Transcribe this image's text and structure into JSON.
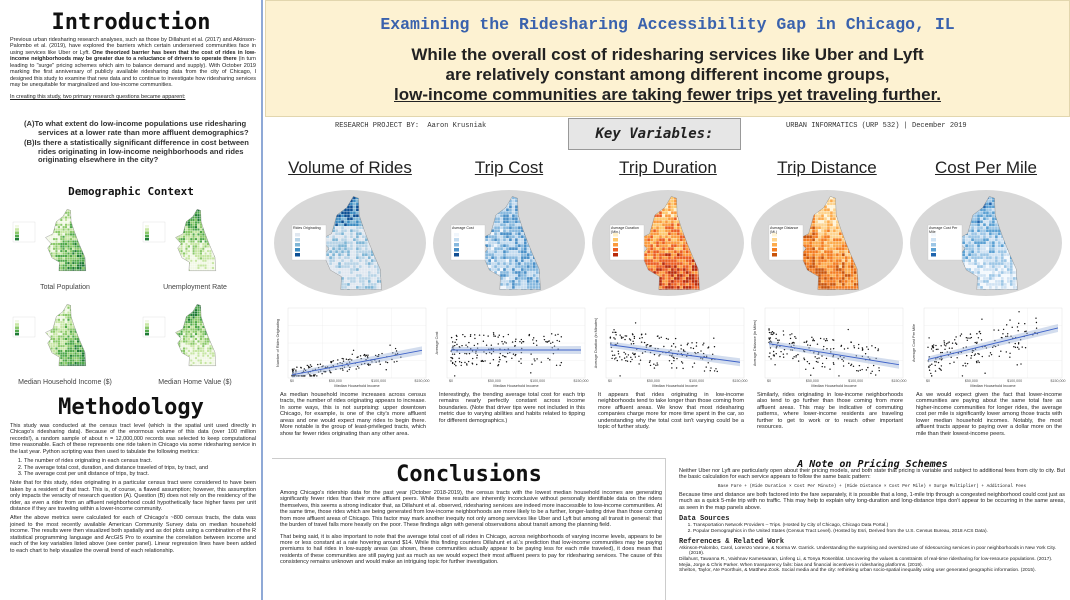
{
  "header": {
    "title": "Examining the Ridesharing Accessibility Gap in Chicago, IL",
    "subtitle": [
      "While the overall cost of ridesharing services like Uber and Lyft",
      "are relatively constant among different income groups,",
      "low-income communities are taking fewer trips yet traveling further."
    ],
    "author": "RESEARCH PROJECT BY:  Aaron Krusniak",
    "course": "URBAN INFORMATICS (URP 532) | December 2019"
  },
  "intro": {
    "title": "Introduction",
    "paragraph_1": [
      "Previous urban ridesharing research analyses, such as those by Dillahunt et al. (2017) and Atkinson-Palombo et al. (2019), have explored the barriers which certain underserved communities face in using services like Uber or Lyft. ",
      "One theorized barrier has been that the cost of rides in low-income neighborhoods may be greater due to a reluctance of drivers to operate there",
      " (in turn leading to \"surge\" pricing schemes which aim to balance demand and supply). With October 2019 marking the first anniversary of publicly available ridesharing data from the city of Chicago, I designed this study to examine that new data and to continue to investigate how ridesharing services may be unequitable for marginalized and low-income communities."
    ],
    "questions_intro": "In creating this study, two primary research questions became apparent:",
    "questions": [
      "(A)To what extent do low-income populations use ridesharing services at a lower rate than more affluent demographics?",
      "(B)Is there a statistically significant difference in cost between rides originating in low-income neighborhoods and rides originating elsewhere in the city?"
    ]
  },
  "demographic": {
    "title": "Demographic Context",
    "maps": [
      "Total Population",
      "Unemployment Rate",
      "Median Household Income ($)",
      "Median Home Value ($)"
    ]
  },
  "methodology": {
    "title": "Methodology",
    "paragraph_1": "This study was conducted at the census tract level (which is the spatial unit used directly in Chicago's ridesharing data). Because of the enormous volume of this data (over 100 million records!), a random sample of about n = 12,000,000 records was selected to keep computational time reasonable. Each of these represents one ride taken in Chicago via some ridesharing service in the last year. Python scripting was then used to tabulate the following metrics:",
    "list": [
      "The number of rides originating in each census tract.",
      "The average total cost, duration, and distance traveled of trips, by tract, and",
      "The average cost per unit distance of trips, by tract."
    ],
    "paragraph_2": "Note that for this study, rides originating in a particular census tract were considered to have been taken by a resident of that tract. This is, of course, a flawed assumption; however, this assumption only impacts the veracity of research question (A). Question (B) does not rely on the residency of the rider, as even a rider from an affluent neighborhood could hypothetically face higher fares per unit distance if they are traveling within a lower-income community.",
    "paragraph_3": "After the above metrics were calculated for each of Chicago's ~800 census tracts, the data was joined to the most recently available American Community Survey data on median household income. The results were then visualized both spatially and as dot plots using a combination of the R statistical programming language and ArcGIS Pro to examine the correlation between income and each of the key variables listed above (see center panel). Linear regression lines have been added to each chart to help visualize the overall trend of each relationship."
  },
  "key_variables": {
    "title": "Key Variables:",
    "x_label": "Median Household Income",
    "x_ticks": [
      "$0",
      "$50,000",
      "$100,000",
      "$150,000"
    ],
    "items": [
      {
        "name": "Volume of Rides",
        "legend": "Rides Originating",
        "y_label": "Number of Rides Originating",
        "text": "As median household income increases across census tracts, the number of rides originating appears to increase. In some ways, this is not surprising: upper downtown Chicago, for example, is one of the city's more affluent areas and one would expect many rides to begin there. More notable is the group of least-privileged tracts, which show far fewer rides originating than any other area."
      },
      {
        "name": "Trip Cost",
        "legend": "Average Cost",
        "y_label": "Average Cost",
        "text": "Interestingly, the trending average total cost for each trip remains nearly perfectly constant across income boundaries. (Note that driver tips were not included in this metric due to varying abilities and habits related to tipping for different demographics.)"
      },
      {
        "name": "Trip Duration",
        "legend": "Average Duration (Min.)",
        "y_label": "Average Duration (in Minutes)",
        "text": "It appears that rides originating in low-income neighborhoods tend to take longer than those coming from more affluent areas. We know that most ridesharing companies charge more for more time spent in the car, so understanding why the total cost isn't varying could be a topic of further study."
      },
      {
        "name": "Trip Distance",
        "legend": "Average Distance (Mi.)",
        "y_label": "Average Distance (in Miles)",
        "text": "Similarly, rides originating in low-income neighborhoods also tend to go further than those coming from more affluent areas. This may be indicative of commuting patterns, where lower-income residents are traveling further to get to work or to reach other important resources."
      },
      {
        "name": "Cost Per Mile",
        "legend": "Average Cost Per Mile",
        "y_label": "Average Cost Per Mile",
        "text": "As we would expect given the fact that lower-income communities are paying about the same total fare as higher-income communities for longer rides, the average cost per mile is significantly lower among those tracts with lower median household incomes. Notably, the most affluent tracts appear to paying over a dollar more on the mile than their lowest-income peers."
      }
    ]
  },
  "conclusions": {
    "title": "Conclusions",
    "paragraphs": [
      "Among Chicago's ridership data for the past year (October 2018-2019), the census tracts with the lowest median household incomes are generating significantly fewer rides than their more affluent peers. While these results are inherently inconclusive without personally identifiable data on the riders themselves, this seems a strong indicator that, as Dillahunt et al. observed, ridesharing services are indeed more inaccessible to low-income communities. At the same time, those rides which are being generated from low-income neighborhoods are more likely to be a further, longer-lasting drive than those coming from more affluent areas of Chicago. This factor may mark another inequity not only among services like Uber and Lyft but among all transit in general: that the burden of travel falls more heavily on the poor. These findings align with general observations about transit among the planning field.",
      "That being said, it is also important to note that the average total cost of all rides in Chicago, across neighborhoods of varying income levels, appears to be more or less constant at a rate hovering around $14. While this finding counters Dillahunt et al.'s prediction that low-income communities may be paying premiums to hail rides in low-supply areas (as shown, these communities actually appear to be paying less for each mile traveled), it does mean that residents of these communities are still paying just as much as we would expect their most affluent peers to pay for ridesharing services. The cause of this consistency remains unknown and would make an intriguing topic for further investigation."
    ]
  },
  "pricing": {
    "title": "A Note on Pricing Schemes",
    "paragraph_1": "Neither Uber nor Lyft are particularly open about their pricing models, and both state that pricing is variable and subject to additional fees from city to city. But the basic calculation for each service appears to follow the same basic pattern:",
    "formula": "Base Fare + (Ride Duration × Cost Per Minute) + (Ride Distance × Cost Per Mile) × Surge Multiplier) + Additional Fees",
    "paragraph_2": "Because time and distance are both factored into the fare separately, it is possible that a long, 1-mile trip through a congested neighborhood could cost just as much as a quick 5-mile trip with no traffic. This may help to explain why long-duration and long-distance trips don't appear to be occurring in the same areas, as seen in the map panels above."
  },
  "data_sources": {
    "title": "Data Sources",
    "items": [
      "Transportation Network Providers – Trips. (Hosted by City of Chicago, Chicago Data Portal.)",
      "Popular Demographics in the United States (Census Tract Level). (Hosted by Esri, Derived from the U.S. Census Bureau, 2018 ACS Data)."
    ]
  },
  "references": {
    "title": "References & Related Work",
    "items": [
      "Atkinson-Palombo, Carol, Lorenzo Varone, & Norma W. Garrick. Understanding the surprising and oversized use of ridesourcing services in poor neighborhoods in New York City. (2019).",
      "Dillahunt, Tawanna R., Vaishnav Kameswaran, Linfeng Li, & Tonya Rosenblat. Uncovering the values & constraints of real-time ridesharing for low-resource populations. (2017).",
      "Mejia, Jorge & Chris Parker. When transparency fails: bias and financial incentives in ridesharing platforms. (2019).",
      "Shelton, Taylor, Ate Poorthuis, & Matthew Zook. Social media and the city: rethinking urban socio-spatial inequality using user generated geographic information. (2015)."
    ]
  }
}
